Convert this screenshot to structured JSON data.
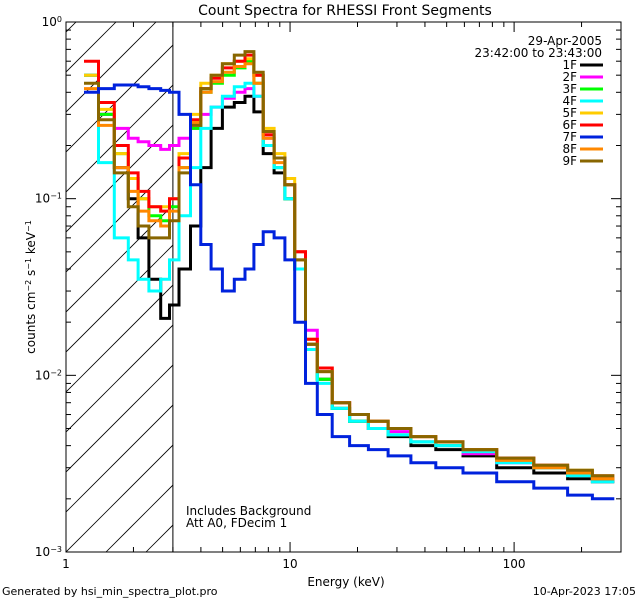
{
  "chart_data": {
    "type": "line",
    "title": "Count Spectra for RHESSI Front Segments",
    "xlabel": "Energy (keV)",
    "ylabel": "counts cm^-2 s^-1 keV^-1",
    "xscale": "log",
    "yscale": "log",
    "xlim": [
      1.0,
      300.0
    ],
    "ylim": [
      0.001,
      1.0
    ],
    "x_tick_labels": [
      "1",
      "10",
      "100"
    ],
    "y_tick_labels": [
      "10^0",
      "10^-1",
      "10^-2",
      "10^-3"
    ],
    "legend_position": "top-right",
    "date": "29-Apr-2005",
    "time_range": "23:42:00 to 23:43:00",
    "annotations": [
      "Includes Background",
      "Att A0, FDecim 1"
    ],
    "shaded_region": {
      "x_from": 1.0,
      "x_to": 3.0,
      "style": "diagonal-hatch"
    },
    "series": [
      {
        "name": "1F",
        "color": "#000000",
        "x": [
          1.3,
          1.5,
          1.8,
          2.0,
          2.2,
          2.5,
          2.8,
          3.0,
          3.4,
          3.8,
          4.2,
          4.7,
          5.3,
          6.0,
          6.6,
          7.2,
          8.0,
          9.0,
          10.0,
          11.0,
          12.5,
          14,
          17,
          20,
          25,
          30,
          40,
          50,
          70,
          100,
          150,
          200,
          250
        ],
        "y": [
          0.5,
          0.3,
          0.15,
          0.1,
          0.06,
          0.035,
          0.021,
          0.025,
          0.04,
          0.07,
          0.15,
          0.25,
          0.33,
          0.35,
          0.38,
          0.31,
          0.18,
          0.14,
          0.1,
          0.04,
          0.015,
          0.0095,
          0.0065,
          0.0055,
          0.005,
          0.0045,
          0.004,
          0.0038,
          0.0035,
          0.003,
          0.0028,
          0.0026,
          0.0025
        ]
      },
      {
        "name": "2F",
        "color": "#ff00ff",
        "x": [
          1.3,
          1.5,
          1.8,
          2.0,
          2.2,
          2.5,
          2.8,
          3.0,
          3.4,
          3.8,
          4.2,
          4.7,
          5.3,
          6.0,
          6.6,
          7.2,
          8.0,
          9.0,
          10.0,
          11.0,
          12.5,
          14,
          17,
          20,
          25,
          30,
          40,
          50,
          70,
          100,
          150,
          200,
          250
        ],
        "y": [
          0.5,
          0.3,
          0.25,
          0.22,
          0.21,
          0.2,
          0.19,
          0.2,
          0.22,
          0.25,
          0.3,
          0.33,
          0.37,
          0.4,
          0.42,
          0.38,
          0.22,
          0.17,
          0.12,
          0.05,
          0.018,
          0.011,
          0.007,
          0.006,
          0.005,
          0.0048,
          0.0042,
          0.004,
          0.0036,
          0.0032,
          0.003,
          0.0028,
          0.0027
        ]
      },
      {
        "name": "3F",
        "color": "#00ff00",
        "x": [
          1.3,
          1.5,
          1.8,
          2.0,
          2.2,
          2.5,
          2.8,
          3.0,
          3.4,
          3.8,
          4.2,
          4.7,
          5.3,
          6.0,
          6.6,
          7.2,
          8.0,
          9.0,
          10.0,
          11.0,
          12.5,
          14,
          17,
          20,
          25,
          30,
          40,
          50,
          70,
          100,
          150,
          200,
          250
        ],
        "y": [
          0.5,
          0.3,
          0.18,
          0.13,
          0.1,
          0.08,
          0.075,
          0.09,
          0.15,
          0.25,
          0.4,
          0.45,
          0.5,
          0.55,
          0.6,
          0.45,
          0.2,
          0.15,
          0.1,
          0.04,
          0.014,
          0.0095,
          0.0065,
          0.0055,
          0.005,
          0.0046,
          0.0042,
          0.004,
          0.0037,
          0.0033,
          0.003,
          0.0028,
          0.0026
        ]
      },
      {
        "name": "4F",
        "color": "#00ffff",
        "x": [
          1.3,
          1.5,
          1.8,
          2.0,
          2.2,
          2.5,
          2.8,
          3.0,
          3.4,
          3.8,
          4.2,
          4.7,
          5.3,
          6.0,
          6.6,
          7.2,
          8.0,
          9.0,
          10.0,
          11.0,
          12.5,
          14,
          17,
          20,
          25,
          30,
          40,
          50,
          70,
          100,
          150,
          200,
          250
        ],
        "y": [
          0.5,
          0.16,
          0.06,
          0.045,
          0.035,
          0.03,
          0.035,
          0.045,
          0.08,
          0.15,
          0.25,
          0.33,
          0.38,
          0.43,
          0.45,
          0.38,
          0.2,
          0.15,
          0.1,
          0.04,
          0.014,
          0.009,
          0.0065,
          0.0055,
          0.005,
          0.0046,
          0.0042,
          0.004,
          0.0037,
          0.0032,
          0.003,
          0.0027,
          0.0025
        ]
      },
      {
        "name": "5F",
        "color": "#ffcc00",
        "x": [
          1.3,
          1.5,
          1.8,
          2.0,
          2.2,
          2.5,
          2.8,
          3.0,
          3.4,
          3.8,
          4.2,
          4.7,
          5.3,
          6.0,
          6.6,
          7.2,
          8.0,
          9.0,
          10.0,
          11.0,
          12.5,
          14,
          17,
          20,
          25,
          30,
          40,
          50,
          70,
          100,
          150,
          200,
          250
        ],
        "y": [
          0.5,
          0.32,
          0.18,
          0.13,
          0.1,
          0.09,
          0.09,
          0.1,
          0.18,
          0.3,
          0.45,
          0.5,
          0.58,
          0.6,
          0.62,
          0.5,
          0.25,
          0.18,
          0.13,
          0.05,
          0.016,
          0.011,
          0.007,
          0.006,
          0.0055,
          0.005,
          0.0045,
          0.0042,
          0.0038,
          0.0034,
          0.0031,
          0.0029,
          0.0027
        ]
      },
      {
        "name": "6F",
        "color": "#ff0000",
        "x": [
          1.3,
          1.5,
          1.8,
          2.0,
          2.2,
          2.5,
          2.8,
          3.0,
          3.4,
          3.8,
          4.2,
          4.7,
          5.3,
          6.0,
          6.6,
          7.2,
          8.0,
          9.0,
          10.0,
          11.0,
          12.5,
          14,
          17,
          20,
          25,
          30,
          40,
          50,
          70,
          100,
          150,
          200,
          250
        ],
        "y": [
          0.6,
          0.35,
          0.2,
          0.14,
          0.11,
          0.09,
          0.085,
          0.1,
          0.17,
          0.28,
          0.42,
          0.48,
          0.55,
          0.6,
          0.65,
          0.5,
          0.23,
          0.17,
          0.12,
          0.05,
          0.016,
          0.011,
          0.007,
          0.006,
          0.0055,
          0.005,
          0.0045,
          0.0042,
          0.0038,
          0.0034,
          0.0031,
          0.0028,
          0.0026
        ]
      },
      {
        "name": "7F",
        "color": "#0022dd",
        "x": [
          1.3,
          1.5,
          1.8,
          2.0,
          2.2,
          2.5,
          2.8,
          3.0,
          3.4,
          3.8,
          4.2,
          4.7,
          5.3,
          6.0,
          6.6,
          7.2,
          8.0,
          9.0,
          10.0,
          11.0,
          12.5,
          14,
          17,
          20,
          25,
          30,
          40,
          50,
          70,
          100,
          150,
          200,
          250
        ],
        "y": [
          0.4,
          0.42,
          0.44,
          0.44,
          0.43,
          0.42,
          0.41,
          0.4,
          0.3,
          0.12,
          0.055,
          0.04,
          0.03,
          0.035,
          0.04,
          0.055,
          0.065,
          0.06,
          0.045,
          0.02,
          0.009,
          0.006,
          0.0045,
          0.004,
          0.0038,
          0.0035,
          0.0032,
          0.003,
          0.0028,
          0.0025,
          0.0023,
          0.0021,
          0.002
        ]
      },
      {
        "name": "8F",
        "color": "#ff8800",
        "x": [
          1.3,
          1.5,
          1.8,
          2.0,
          2.2,
          2.5,
          2.8,
          3.0,
          3.4,
          3.8,
          4.2,
          4.7,
          5.3,
          6.0,
          6.6,
          7.2,
          8.0,
          9.0,
          10.0,
          11.0,
          12.5,
          14,
          17,
          20,
          25,
          30,
          40,
          50,
          70,
          100,
          150,
          200,
          250
        ],
        "y": [
          0.42,
          0.26,
          0.15,
          0.11,
          0.085,
          0.075,
          0.07,
          0.085,
          0.15,
          0.27,
          0.4,
          0.46,
          0.52,
          0.56,
          0.58,
          0.45,
          0.22,
          0.16,
          0.12,
          0.045,
          0.015,
          0.0105,
          0.007,
          0.006,
          0.0055,
          0.005,
          0.0045,
          0.0042,
          0.0038,
          0.0033,
          0.003,
          0.0028,
          0.0026
        ]
      },
      {
        "name": "9F",
        "color": "#886600",
        "x": [
          1.3,
          1.5,
          1.8,
          2.0,
          2.2,
          2.5,
          2.8,
          3.0,
          3.4,
          3.8,
          4.2,
          4.7,
          5.3,
          6.0,
          6.6,
          7.2,
          8.0,
          9.0,
          10.0,
          11.0,
          12.5,
          14,
          17,
          20,
          25,
          30,
          40,
          50,
          70,
          100,
          150,
          200,
          250
        ],
        "y": [
          0.45,
          0.28,
          0.14,
          0.09,
          0.07,
          0.06,
          0.06,
          0.075,
          0.14,
          0.26,
          0.42,
          0.5,
          0.58,
          0.65,
          0.68,
          0.52,
          0.24,
          0.17,
          0.12,
          0.045,
          0.015,
          0.0105,
          0.007,
          0.006,
          0.0055,
          0.005,
          0.0045,
          0.0042,
          0.0038,
          0.0034,
          0.0031,
          0.0029,
          0.0027
        ]
      }
    ]
  },
  "footer": {
    "generated_by": "Generated by hsi_min_spectra_plot.pro",
    "timestamp": "10-Apr-2023 17:05"
  }
}
